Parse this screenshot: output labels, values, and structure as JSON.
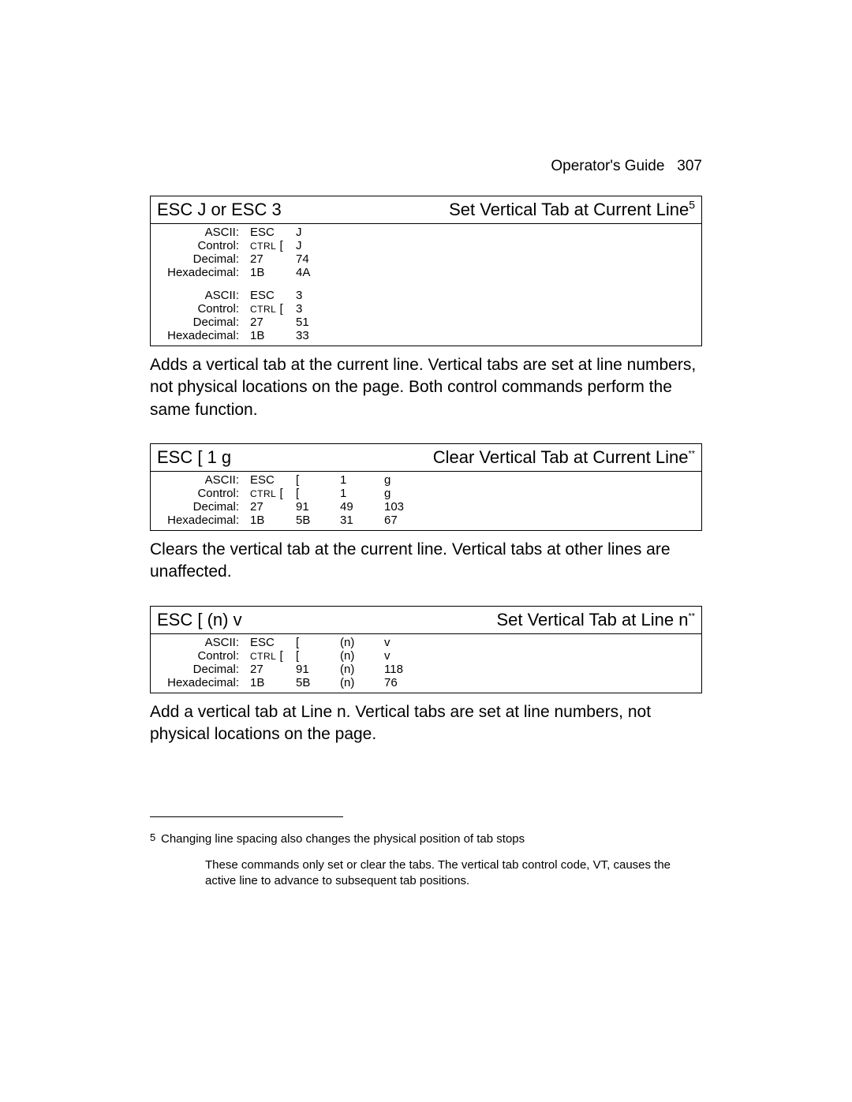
{
  "header": {
    "title": "Operator's Guide",
    "page_number": "307"
  },
  "commands": [
    {
      "id": "cmd1",
      "left_title": "ESC J or ESC 3",
      "right_title": "Set Vertical Tab at Current Line",
      "super": "5",
      "super_class": "sup",
      "double": true,
      "rowsA": {
        "ascii": [
          "ESC",
          "J",
          "",
          ""
        ],
        "control": [
          "CTRL_[",
          "J",
          "",
          ""
        ],
        "decimal": [
          "27",
          "74",
          "",
          ""
        ],
        "hex": [
          "1B",
          "4A",
          "",
          ""
        ]
      },
      "rowsB": {
        "ascii": [
          "ESC",
          "3",
          "",
          ""
        ],
        "control": [
          "CTRL_[",
          "3",
          "",
          ""
        ],
        "decimal": [
          "27",
          "51",
          "",
          ""
        ],
        "hex": [
          "1B",
          "33",
          "",
          ""
        ]
      },
      "description": "Adds a vertical tab at the current line.  Vertical tabs are set at line numbers, not physical locations on the page.  Both control commands perform the same function."
    },
    {
      "id": "cmd2",
      "left_title": "ESC [ 1 g",
      "right_title": "Clear Vertical Tab at Current Line",
      "super": "**",
      "super_class": "sup-small",
      "double": false,
      "rowsA": {
        "ascii": [
          "ESC",
          "[",
          "1",
          "g"
        ],
        "control": [
          "CTRL_[",
          "[",
          "1",
          "g"
        ],
        "decimal": [
          "27",
          "91",
          "49",
          "103"
        ],
        "hex": [
          "1B",
          "5B",
          "31",
          "67"
        ]
      },
      "description": "Clears the vertical tab at the current line.  Vertical tabs at other lines are unaffected."
    },
    {
      "id": "cmd3",
      "left_title": "ESC [ (n) v",
      "right_title": "Set Vertical Tab at Line n",
      "super": "**",
      "super_class": "sup-small",
      "double": false,
      "rowsA": {
        "ascii": [
          "ESC",
          "[",
          "(n)",
          "v"
        ],
        "control": [
          "CTRL_[",
          "[",
          "(n)",
          "v"
        ],
        "decimal": [
          "27",
          "91",
          "(n)",
          "118"
        ],
        "hex": [
          "1B",
          "5B",
          "(n)",
          "76"
        ]
      },
      "description": "Add a vertical tab at Line n.  Vertical tabs are set at line numbers, not physical locations on the page."
    }
  ],
  "labels": {
    "ascii": "ASCII:",
    "control": "Control:",
    "decimal": "Decimal:",
    "hex": "Hexadecimal:"
  },
  "footnotes": [
    {
      "marker": "5",
      "indent": false,
      "text": "Changing line spacing also changes the physical position of tab stops"
    },
    {
      "marker": "",
      "indent": true,
      "text": "These commands only set or clear the tabs.  The vertical tab control code, VT, causes the active line to advance to subsequent tab positions."
    }
  ]
}
